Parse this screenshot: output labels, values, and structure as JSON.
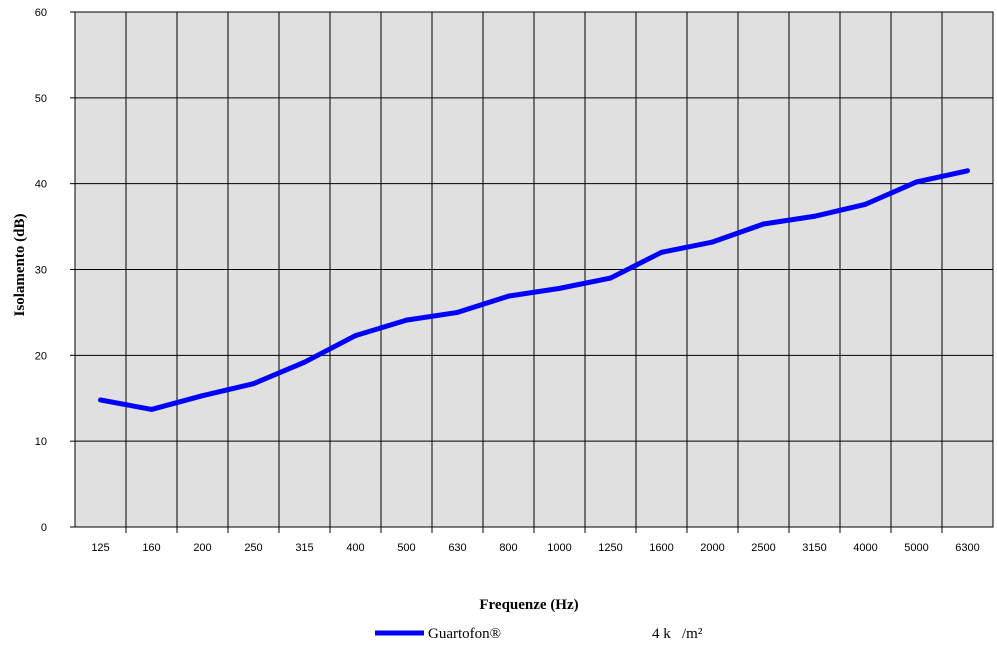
{
  "chart_data": {
    "type": "line",
    "xlabel": "Frequenze (Hz)",
    "ylabel": "Isolamento (dB)",
    "categories": [
      "125",
      "160",
      "200",
      "250",
      "315",
      "400",
      "500",
      "630",
      "800",
      "1000",
      "1250",
      "1600",
      "2000",
      "2500",
      "3150",
      "4000",
      "5000",
      "6300"
    ],
    "ylim": [
      0,
      60
    ],
    "yticks": [
      0,
      10,
      20,
      30,
      40,
      50,
      60
    ],
    "grid": true,
    "legend_position": "bottom",
    "series": [
      {
        "name": "Guartofon®",
        "legend_extra": "4 k   /m²",
        "color": "#0000ff",
        "values": [
          14.8,
          13.7,
          15.3,
          16.7,
          19.2,
          22.3,
          24.1,
          25.0,
          26.9,
          27.8,
          29.0,
          32.0,
          33.2,
          35.3,
          36.2,
          37.6,
          40.2,
          41.5
        ]
      }
    ]
  },
  "colors": {
    "plot_background": "#e0e0e0",
    "grid": "#000000"
  }
}
